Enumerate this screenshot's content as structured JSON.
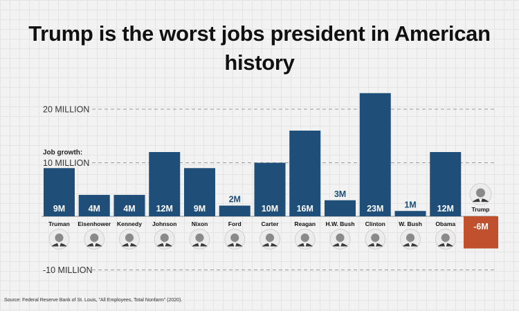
{
  "chart_data": {
    "type": "bar",
    "title": "Trump is the worst jobs president in American history",
    "ylabel_note": "Job growth:",
    "ylim": [
      -10,
      20
    ],
    "yticks": [
      {
        "value": 20,
        "label": "20 MILLION"
      },
      {
        "value": 10,
        "label": "10 MILLION"
      },
      {
        "value": -10,
        "label": "-10 MILLION"
      }
    ],
    "categories": [
      "Truman",
      "Eisenhower",
      "Kennedy",
      "Johnson",
      "Nixon",
      "Ford",
      "Carter",
      "Reagan",
      "H.W. Bush",
      "Clinton",
      "W. Bush",
      "Obama",
      "Trump"
    ],
    "values": [
      9,
      4,
      4,
      12,
      9,
      2,
      10,
      16,
      3,
      23,
      1,
      12,
      -6
    ],
    "data_labels": [
      "9M",
      "4M",
      "4M",
      "12M",
      "9M",
      "2M",
      "10M",
      "16M",
      "3M",
      "23M",
      "1M",
      "12M",
      "-6M"
    ],
    "colors": {
      "positive": "#1f4e79",
      "negative": "#c0502e",
      "label_dark": "#1f4e79",
      "label_light": "#ffffff"
    },
    "source": "Source: Federal Reserve Bank of St. Louis, \"All Employees, Total Nonfarm\" (2020)."
  }
}
